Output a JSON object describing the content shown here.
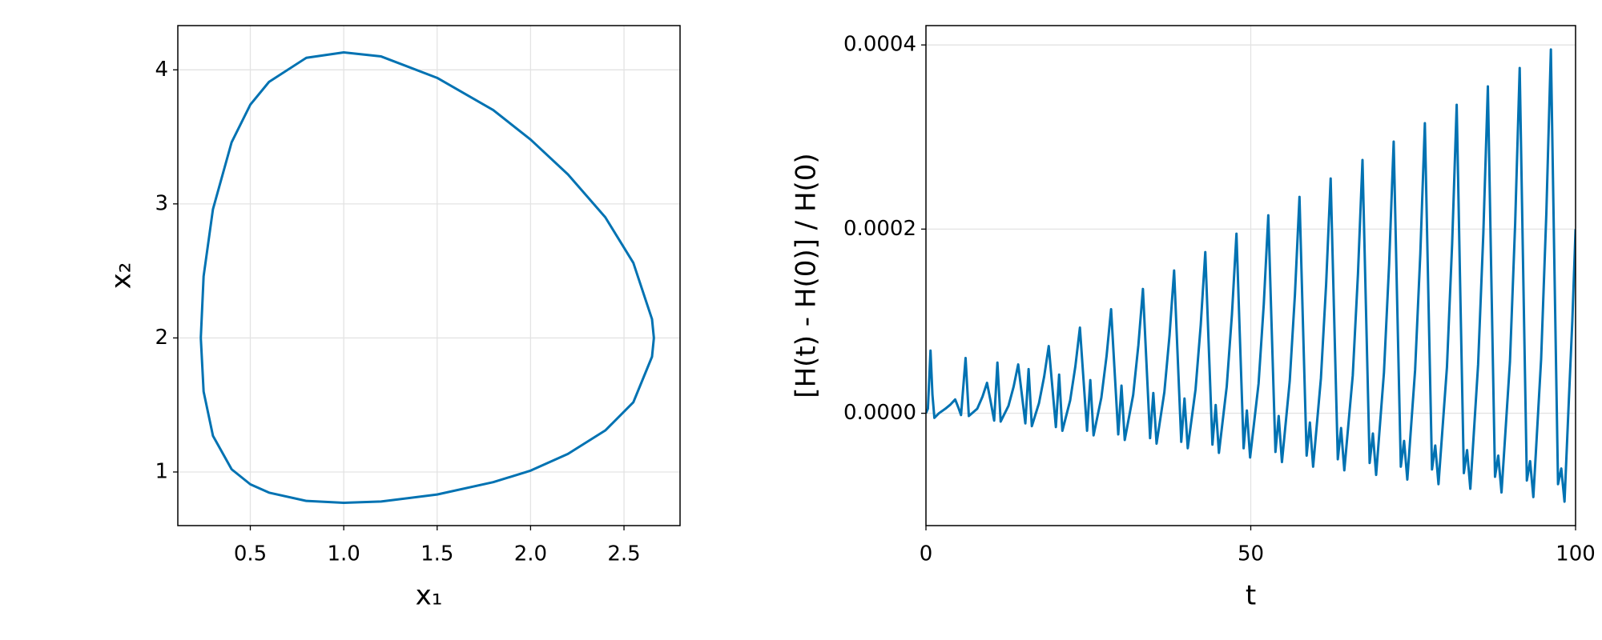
{
  "chart_data": [
    {
      "type": "line",
      "xlabel": "x₁",
      "ylabel": "x₂",
      "grid": true,
      "xlim": [
        0.112,
        2.8
      ],
      "ylim": [
        0.6,
        4.33
      ],
      "xticks": [
        0.5,
        {
          "value": 1,
          "label": "1.0"
        },
        1.5,
        {
          "value": 2,
          "label": "2.0"
        },
        2.5
      ],
      "yticks": [
        1,
        2,
        3,
        4
      ],
      "x": [
        0.235,
        0.25,
        0.3,
        0.4,
        0.5,
        0.6,
        0.8,
        1.0,
        1.2,
        1.5,
        1.8,
        2.0,
        2.2,
        2.4,
        2.55,
        2.65,
        2.66,
        2.65,
        2.55,
        2.4,
        2.2,
        2.0,
        1.8,
        1.5,
        1.2,
        1.0,
        0.8,
        0.6,
        0.5,
        0.4,
        0.3,
        0.25,
        0.235
      ],
      "series": [
        {
          "color": "#0072b2",
          "values": [
            2,
            2.46,
            2.96,
            3.46,
            3.74,
            3.91,
            4.09,
            4.13,
            4.1,
            3.94,
            3.7,
            3.48,
            3.22,
            2.9,
            2.56,
            2.14,
            2.0,
            1.86,
            1.52,
            1.31,
            1.135,
            1.01,
            0.924,
            0.832,
            0.78,
            0.77,
            0.784,
            0.846,
            0.908,
            1.02,
            1.27,
            1.6,
            2
          ]
        }
      ]
    },
    {
      "type": "line",
      "xlabel": "t",
      "ylabel": "[H(t) - H(0)] / H(0)",
      "grid": true,
      "xlim": [
        0,
        100
      ],
      "ylim": [
        -0.000122,
        0.000421
      ],
      "xticks": [
        0,
        50,
        100
      ],
      "yticks": [
        {
          "value": 0,
          "label": "0.0000"
        },
        {
          "value": 0.0002,
          "label": "0.0002"
        },
        {
          "value": 0.0004,
          "label": "0.0004"
        }
      ],
      "x": [
        0,
        0.3,
        0.7,
        1.0,
        1.3,
        2.0,
        3.0,
        3.7,
        4.5,
        5.0,
        5.4,
        6.1,
        6.6,
        7.9,
        8.7,
        9.4,
        9.9,
        10.5,
        11.0,
        11.5,
        12.7,
        13.5,
        14.2,
        14.7,
        15.3,
        15.8,
        16.3,
        17.4,
        18.2,
        18.9,
        19.4,
        20.0,
        20.5,
        21.0,
        22.2,
        23.0,
        23.7,
        24.2,
        24.8,
        25.3,
        25.8,
        27.0,
        27.8,
        28.5,
        29.0,
        29.6,
        30.1,
        30.6,
        31.9,
        32.7,
        33.4,
        33.9,
        34.5,
        35.0,
        35.5,
        36.7,
        37.5,
        38.2,
        38.7,
        39.3,
        39.8,
        40.3,
        41.5,
        42.3,
        43.0,
        43.5,
        44.1,
        44.6,
        45.1,
        46.3,
        47.1,
        47.8,
        48.3,
        48.9,
        49.4,
        49.9,
        51.2,
        52.0,
        52.7,
        53.2,
        53.8,
        54.3,
        54.8,
        56.0,
        56.8,
        57.5,
        58.0,
        58.6,
        59.1,
        59.6,
        60.8,
        61.6,
        62.3,
        62.8,
        63.4,
        63.9,
        64.4,
        65.7,
        66.5,
        67.2,
        67.7,
        68.3,
        68.8,
        69.3,
        70.5,
        71.3,
        72.0,
        72.5,
        73.1,
        73.6,
        74.1,
        75.3,
        76.1,
        76.8,
        77.3,
        77.9,
        78.4,
        78.9,
        80.2,
        81.0,
        81.7,
        82.2,
        82.8,
        83.3,
        83.8,
        85.0,
        85.8,
        86.5,
        87.0,
        87.6,
        88.1,
        88.6,
        89.9,
        90.7,
        91.4,
        91.9,
        92.5,
        93.0,
        93.5,
        94.7,
        95.5,
        96.2,
        96.7,
        97.3,
        97.8,
        98.3,
        99.0,
        99.5,
        100
      ],
      "series": [
        {
          "color": "#0072b2",
          "values": [
            0,
            5e-06,
            6.8e-05,
            2e-05,
            -5e-06,
            0,
            5e-06,
            9e-06,
            1.5e-05,
            6e-06,
            -2e-06,
            6e-05,
            -3e-06,
            5e-06,
            1.8e-05,
            3.3e-05,
            1.5e-05,
            -8e-06,
            5.5e-05,
            -9e-06,
            8e-06,
            2.9e-05,
            5.3e-05,
            2.4e-05,
            -1.1e-05,
            4.8e-05,
            -1.4e-05,
            1.1e-05,
            4e-05,
            7.3e-05,
            3.3e-05,
            -1.5e-05,
            4.2e-05,
            -1.9e-05,
            1.4e-05,
            5.1e-05,
            9.3e-05,
            4.2e-05,
            -1.9e-05,
            3.6e-05,
            -2.4e-05,
            1.7e-05,
            6.2e-05,
            0.000113,
            5.1e-05,
            -2.3e-05,
            3e-05,
            -2.9e-05,
            2e-05,
            7.4e-05,
            0.000135,
            6.1e-05,
            -2.7e-05,
            2.2e-05,
            -3.3e-05,
            2.3e-05,
            8.5e-05,
            0.000155,
            7e-05,
            -3.1e-05,
            1.6e-05,
            -3.8e-05,
            2.6e-05,
            9.6e-05,
            0.000175,
            7.9e-05,
            -3.4e-05,
            9e-06,
            -4.3e-05,
            2.9e-05,
            0.000107,
            0.000195,
            8.8e-05,
            -3.8e-05,
            3e-06,
            -4.8e-05,
            3.2e-05,
            0.000118,
            0.000215,
            9.7e-05,
            -4.2e-05,
            -3e-06,
            -5.3e-05,
            3.5e-05,
            0.000129,
            0.000235,
            0.000106,
            -4.6e-05,
            -1e-05,
            -5.8e-05,
            3.8e-05,
            0.00014,
            0.000255,
            0.000115,
            -5e-05,
            -1.6e-05,
            -6.2e-05,
            4.1e-05,
            0.000151,
            0.000275,
            0.000124,
            -5.4e-05,
            -2.2e-05,
            -6.7e-05,
            4.4e-05,
            0.000162,
            0.000295,
            0.000133,
            -5.8e-05,
            -3e-05,
            -7.2e-05,
            4.7e-05,
            0.000173,
            0.000315,
            0.000142,
            -6.1e-05,
            -3.5e-05,
            -7.7e-05,
            5e-05,
            0.000184,
            0.000335,
            0.000151,
            -6.5e-05,
            -4e-05,
            -8.2e-05,
            5.3e-05,
            0.000195,
            0.000355,
            0.00016,
            -6.9e-05,
            -4.6e-05,
            -8.6e-05,
            5.6e-05,
            0.000206,
            0.000375,
            0.000169,
            -7.3e-05,
            -5.2e-05,
            -9.1e-05,
            5.9e-05,
            0.000217,
            0.000395,
            0.000178,
            -7.7e-05,
            -6e-05,
            -9.6e-05,
            2e-05,
            0.0001,
            0.0002
          ]
        }
      ]
    }
  ]
}
